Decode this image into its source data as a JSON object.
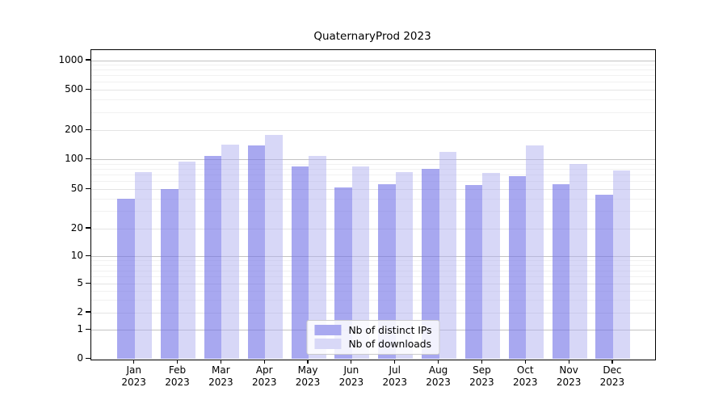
{
  "title": "QuaternaryProd 2023",
  "chart_data": {
    "type": "bar",
    "title": "QuaternaryProd 2023",
    "year": "2023",
    "months": [
      "Jan",
      "Feb",
      "Mar",
      "Apr",
      "May",
      "Jun",
      "Jul",
      "Aug",
      "Sep",
      "Oct",
      "Nov",
      "Dec"
    ],
    "categories": [
      "Jan 2023",
      "Feb 2023",
      "Mar 2023",
      "Apr 2023",
      "May 2023",
      "Jun 2023",
      "Jul 2023",
      "Aug 2023",
      "Sep 2023",
      "Oct 2023",
      "Nov 2023",
      "Dec 2023"
    ],
    "series": [
      {
        "name": "Nb of distinct IPs",
        "color": "#a9a9f0",
        "values": [
          40,
          50,
          110,
          140,
          85,
          52,
          56,
          80,
          55,
          68,
          56,
          44
        ]
      },
      {
        "name": "Nb of downloads",
        "color": "#d8d8f7",
        "values": [
          75,
          95,
          142,
          180,
          110,
          85,
          75,
          120,
          74,
          140,
          90,
          78
        ]
      }
    ],
    "yscale": "symlog",
    "yticks": [
      0,
      1,
      2,
      5,
      10,
      20,
      50,
      100,
      200,
      500,
      1000
    ],
    "ylim": [
      0,
      1000
    ],
    "xlabel": "",
    "ylabel": "",
    "grid": true,
    "legend_position": "lower center"
  },
  "legend": {
    "items": [
      {
        "label": "Nb of distinct IPs",
        "color": "#a9a9f0"
      },
      {
        "label": "Nb of downloads",
        "color": "#d8d8f7"
      }
    ]
  }
}
